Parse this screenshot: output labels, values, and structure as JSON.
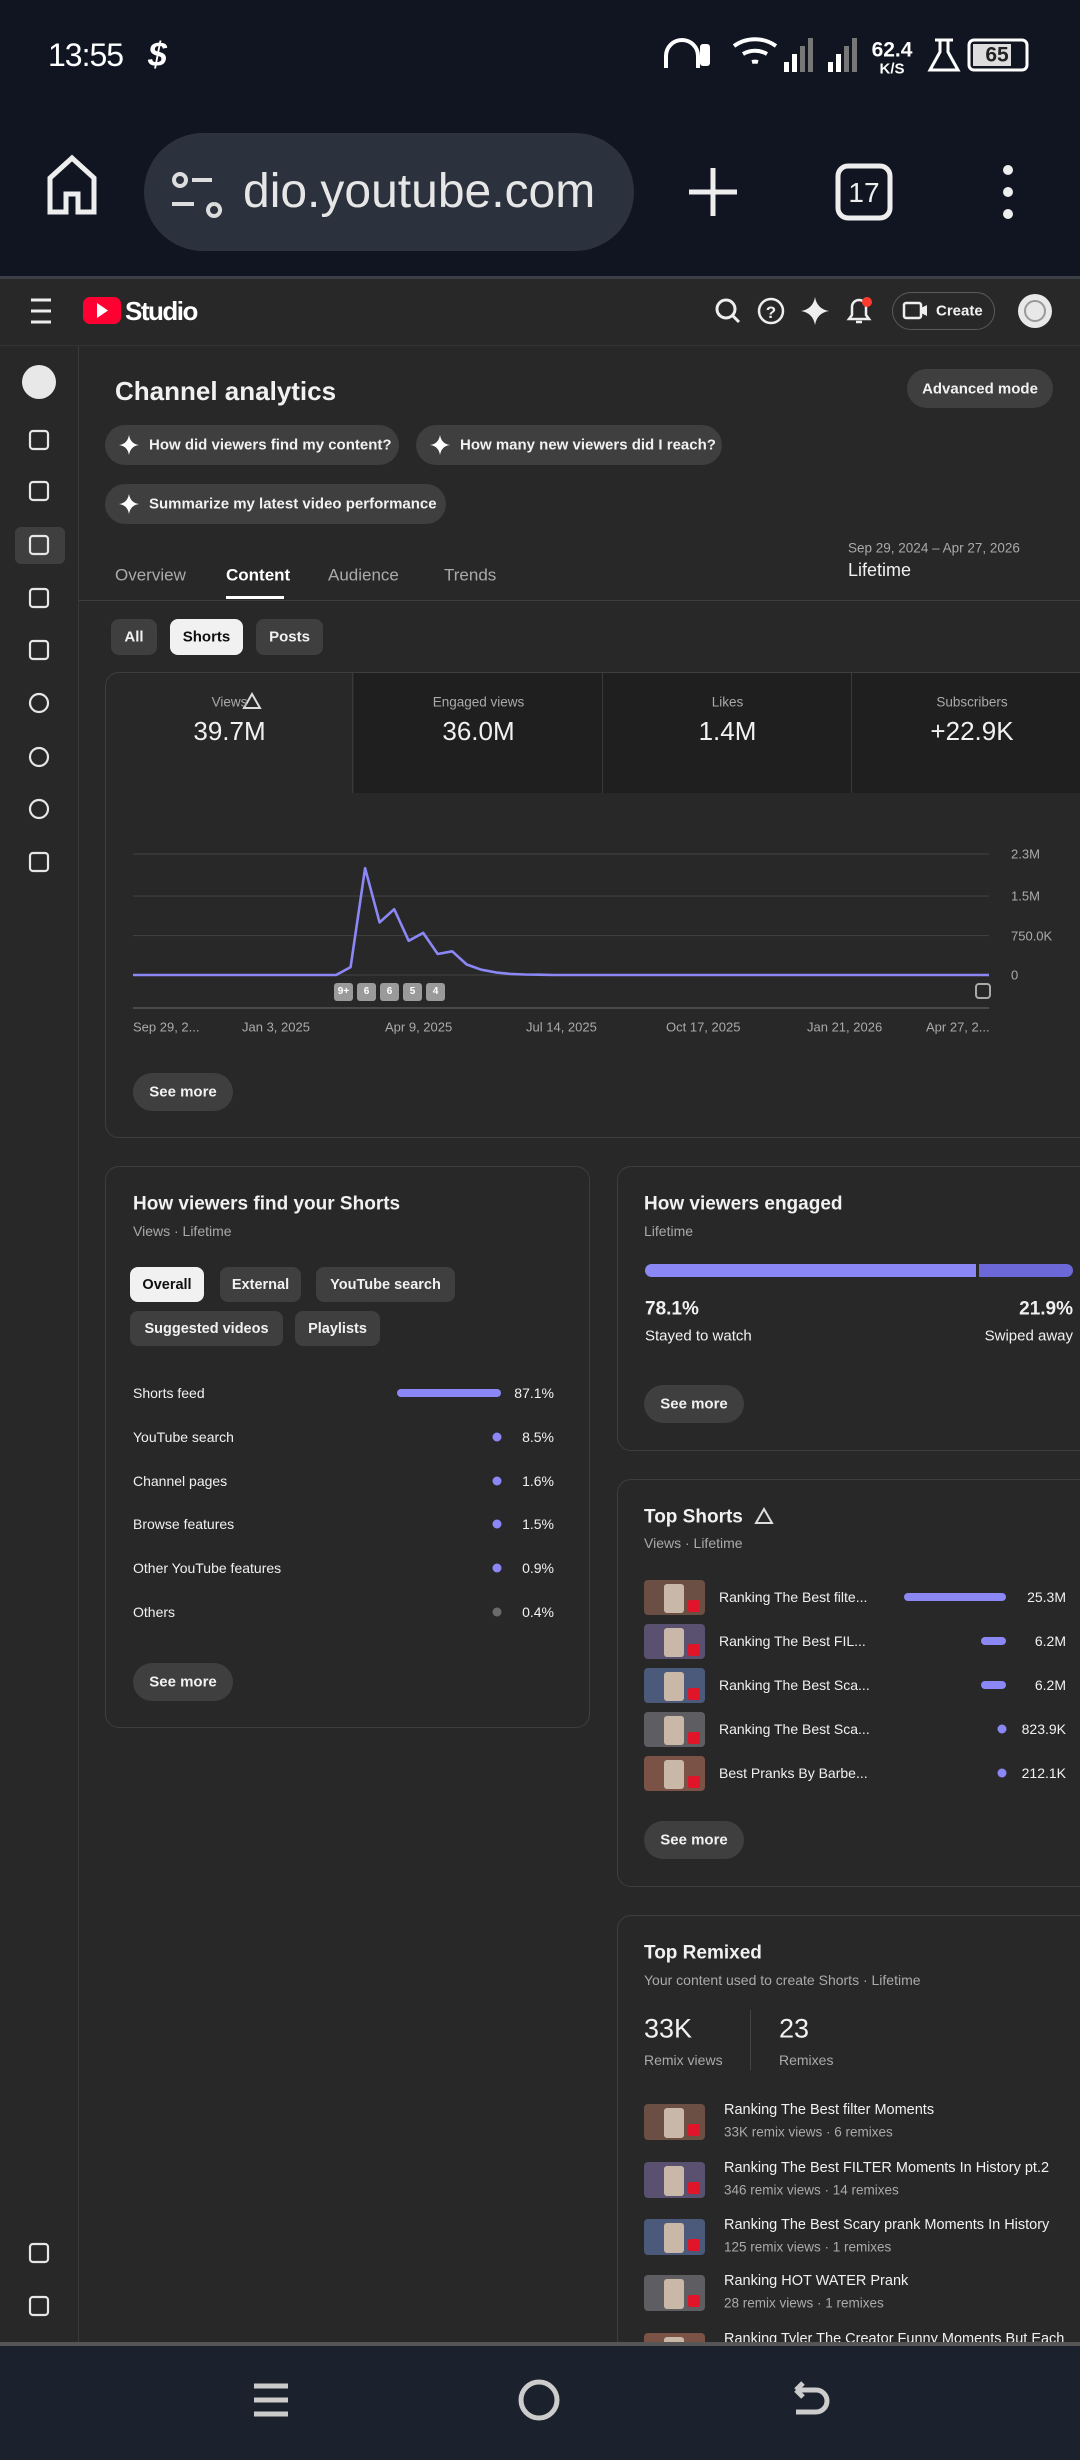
{
  "status_bar": {
    "time": "13:55",
    "network_speed": "62.4",
    "network_unit": "K/S",
    "battery": "65"
  },
  "browser": {
    "url": "dio.youtube.com",
    "tab_count": "17"
  },
  "app_header": {
    "logo": "Studio",
    "create_button": "Create"
  },
  "page": {
    "title": "Channel analytics",
    "advanced_mode": "Advanced mode",
    "prompts": [
      "How did viewers find my content?",
      "How many new viewers did I reach?",
      "Summarize my latest video performance"
    ],
    "tabs": [
      "Overview",
      "Content",
      "Audience",
      "Trends"
    ],
    "date_range": "Sep 29, 2024 – Apr 27, 2026",
    "period": "Lifetime",
    "filters": [
      "All",
      "Shorts",
      "Posts"
    ]
  },
  "metrics": [
    {
      "label": "Views",
      "value": "39.7M"
    },
    {
      "label": "Engaged views",
      "value": "36.0M"
    },
    {
      "label": "Likes",
      "value": "1.4M"
    },
    {
      "label": "Subscribers",
      "value": "+22.9K"
    }
  ],
  "chart_data": {
    "type": "line",
    "color": "#8b87f5",
    "grid": true,
    "x_labels": [
      "Sep 29, 2...",
      "Jan 3, 2025",
      "Apr 9, 2025",
      "Jul 14, 2025",
      "Oct 17, 2025",
      "Jan 21, 2026",
      "Apr 27, 2..."
    ],
    "badges": [
      "9+",
      "6",
      "6",
      "5",
      "4"
    ],
    "ylim": [
      0,
      2300000
    ],
    "yticks": [
      0,
      {
        "value": 750000,
        "label": "750.0K"
      },
      {
        "value": 1500000,
        "label": "1.5M"
      },
      {
        "value": 2300000,
        "label": "2.3M"
      }
    ],
    "values": [
      0,
      0,
      0,
      0,
      0,
      0,
      0,
      0,
      0,
      0,
      0,
      0,
      0,
      0,
      0,
      150000,
      2030000,
      1000000,
      1250000,
      650000,
      800000,
      400000,
      450000,
      200000,
      100000,
      50000,
      20000,
      10000,
      5000,
      0,
      0,
      0,
      0,
      0,
      0,
      0,
      0,
      0,
      0,
      0,
      0,
      0,
      0,
      0,
      0,
      0,
      0,
      0,
      0,
      0,
      0,
      0,
      0,
      0,
      0,
      0,
      0,
      0,
      0,
      0
    ]
  },
  "overview_see_more": "See more",
  "traffic_sources": {
    "title": "How viewers find your Shorts",
    "subtitle": "Views · Lifetime",
    "filters": [
      "Overall",
      "External",
      "YouTube search",
      "Suggested videos",
      "Playlists"
    ],
    "rows": [
      {
        "label": "Shorts feed",
        "value": "87.1%"
      },
      {
        "label": "YouTube search",
        "value": "8.5%"
      },
      {
        "label": "Channel pages",
        "value": "1.6%"
      },
      {
        "label": "Browse features",
        "value": "1.5%"
      },
      {
        "label": "Other YouTube features",
        "value": "0.9%"
      },
      {
        "label": "Others",
        "value": "0.4%"
      }
    ],
    "see_more": "See more"
  },
  "engagement": {
    "title": "How viewers engaged",
    "subtitle": "Lifetime",
    "stayed": {
      "value": "78.1%",
      "label": "Stayed to watch"
    },
    "swiped": {
      "value": "21.9%",
      "label": "Swiped away"
    },
    "see_more": "See more"
  },
  "top_shorts": {
    "title": "Top Shorts",
    "subtitle": "Views · Lifetime",
    "rows": [
      {
        "title": "Ranking The Best filte...",
        "views": "25.3M"
      },
      {
        "title": "Ranking The Best FIL...",
        "views": "6.2M"
      },
      {
        "title": "Ranking The Best Sca...",
        "views": "6.2M"
      },
      {
        "title": "Ranking The Best Sca...",
        "views": "823.9K"
      },
      {
        "title": "Best Pranks By Barbe...",
        "views": "212.1K"
      }
    ],
    "see_more": "See more"
  },
  "top_remixed": {
    "title": "Top Remixed",
    "subtitle": "Your content used to create Shorts · Lifetime",
    "remix_views": {
      "value": "33K",
      "label": "Remix views"
    },
    "remixes": {
      "value": "23",
      "label": "Remixes"
    },
    "rows": [
      {
        "title": "Ranking The Best filter Moments",
        "details": "33K remix views · 6 remixes"
      },
      {
        "title": "Ranking The Best FILTER Moments In History pt.2",
        "details": "346 remix views · 14 remixes"
      },
      {
        "title": "Ranking The Best Scary prank Moments In History",
        "details": "125 remix views · 1 remixes"
      },
      {
        "title": "Ranking HOT WATER Prank",
        "details": "28 remix views · 1 remixes"
      },
      {
        "title": "Ranking Tyler The Creator Funny Moments But Each"
      }
    ]
  }
}
